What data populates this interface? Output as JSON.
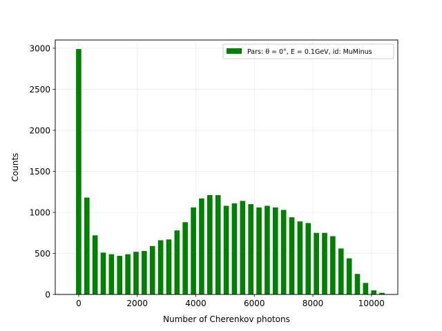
{
  "chart_data": {
    "type": "bar",
    "title": "",
    "xlabel": "Number of Cherenkov photons",
    "ylabel": "Counts",
    "xlim": [
      -800,
      10900
    ],
    "ylim": [
      0,
      3100
    ],
    "xticks": [
      0,
      2000,
      4000,
      6000,
      8000,
      10000
    ],
    "yticks": [
      0,
      500,
      1000,
      1500,
      2000,
      2500,
      3000
    ],
    "grid": true,
    "legend": {
      "placement": "top-right",
      "color": "#008000"
    },
    "bar_width": 180,
    "color": "#008000",
    "series": [
      {
        "name": "Pars: θ = 0°, E = 0.1GeV, id: MuMinus",
        "x": [
          0,
          280,
          560,
          840,
          1120,
          1400,
          1680,
          1960,
          2240,
          2520,
          2800,
          3080,
          3360,
          3640,
          3920,
          4200,
          4480,
          4760,
          5040,
          5320,
          5600,
          5880,
          6160,
          6440,
          6720,
          7000,
          7280,
          7560,
          7840,
          8120,
          8400,
          8680,
          8960,
          9240,
          9520,
          9800,
          10080,
          10360
        ],
        "values": [
          2990,
          1180,
          720,
          510,
          490,
          470,
          490,
          520,
          530,
          590,
          660,
          670,
          780,
          880,
          1060,
          1170,
          1210,
          1210,
          1080,
          1110,
          1140,
          1100,
          1060,
          1080,
          1060,
          1030,
          940,
          890,
          870,
          750,
          750,
          710,
          560,
          440,
          250,
          140,
          50,
          20
        ]
      }
    ]
  }
}
